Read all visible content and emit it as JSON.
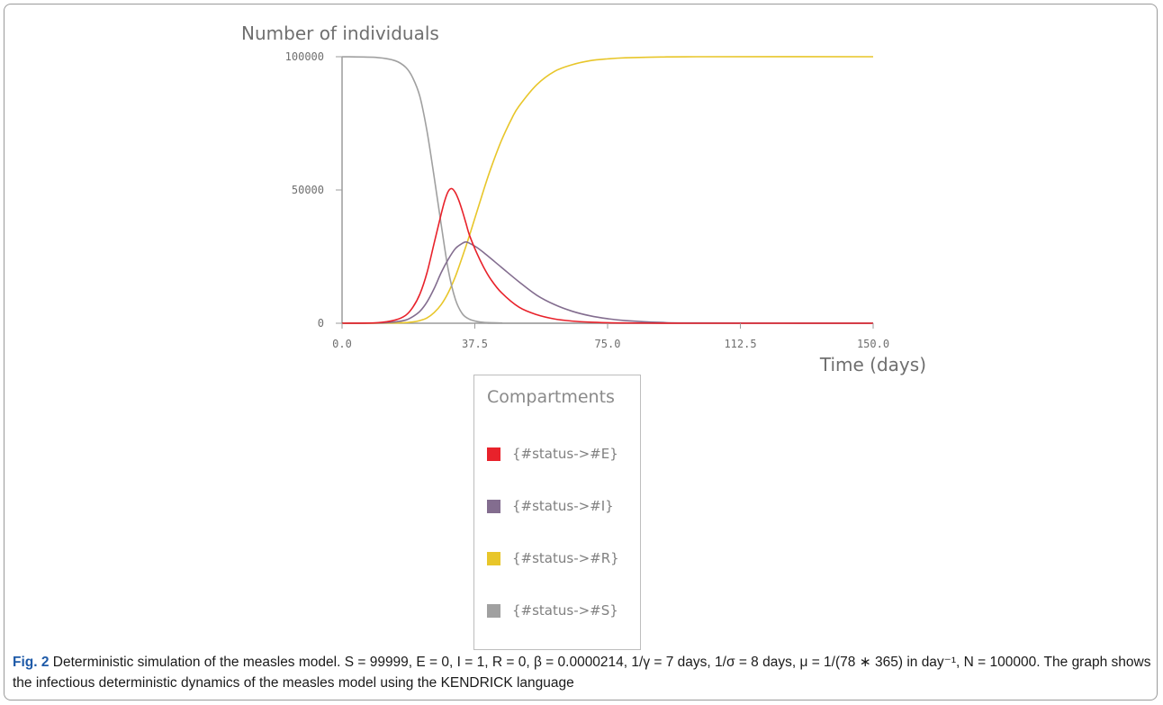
{
  "chart_data": {
    "type": "line",
    "ylabel": "Number of individuals",
    "xlabel": "Time (days)",
    "xlim": [
      0,
      150
    ],
    "ylim": [
      0,
      100000
    ],
    "x_ticks": [
      "0.0",
      "37.5",
      "75.0",
      "112.5",
      "150.0"
    ],
    "y_ticks": [
      "0",
      "50000",
      "100000"
    ],
    "legend_title": "Compartments",
    "legend_position": "below",
    "series": [
      {
        "name": "{#status->#E}",
        "color": "#e8222b",
        "x": [
          0,
          10,
          15,
          18,
          20,
          22,
          24,
          26,
          28,
          29,
          30,
          31,
          32,
          33,
          34,
          35,
          36,
          38,
          40,
          42,
          45,
          50,
          55,
          60,
          65,
          70,
          75,
          80,
          90,
          100,
          150
        ],
        "y": [
          0,
          200,
          1200,
          3000,
          6000,
          11000,
          19000,
          30000,
          41000,
          46000,
          49500,
          50500,
          49000,
          46000,
          42000,
          37500,
          33000,
          26500,
          21000,
          16500,
          11500,
          6000,
          3200,
          1600,
          800,
          400,
          200,
          100,
          20,
          0,
          0
        ]
      },
      {
        "name": "{#status->#I}",
        "color": "#836d8f",
        "x": [
          0,
          10,
          15,
          18,
          20,
          22,
          24,
          26,
          28,
          30,
          32,
          34,
          35,
          36,
          38,
          40,
          45,
          50,
          55,
          60,
          65,
          70,
          75,
          80,
          90,
          100,
          150
        ],
        "y": [
          0,
          100,
          500,
          1200,
          2500,
          4500,
          8000,
          13000,
          19000,
          24000,
          28000,
          30000,
          30500,
          30000,
          28500,
          26500,
          21000,
          15500,
          10500,
          7000,
          4500,
          2800,
          1700,
          1000,
          300,
          100,
          0
        ]
      },
      {
        "name": "{#status->#R}",
        "color": "#e8c62a",
        "x": [
          0,
          15,
          20,
          22,
          24,
          26,
          28,
          30,
          32,
          34,
          36,
          38,
          40,
          42,
          45,
          48,
          50,
          55,
          60,
          65,
          70,
          75,
          80,
          90,
          100,
          150
        ],
        "y": [
          0,
          100,
          500,
          1000,
          2000,
          4000,
          7000,
          11500,
          17500,
          25000,
          33000,
          41500,
          50000,
          58000,
          68500,
          77000,
          81500,
          89500,
          94500,
          97000,
          98500,
          99200,
          99600,
          99900,
          100000,
          100000
        ]
      },
      {
        "name": "{#status->#S}",
        "color": "#a0a0a0",
        "x": [
          0,
          10,
          15,
          18,
          20,
          22,
          24,
          26,
          28,
          30,
          32,
          34,
          36,
          38,
          40,
          45,
          50,
          150
        ],
        "y": [
          99999,
          99700,
          98500,
          96000,
          92000,
          85000,
          72000,
          55000,
          37000,
          20000,
          9000,
          3500,
          1500,
          700,
          300,
          100,
          0,
          0
        ]
      }
    ]
  },
  "caption": {
    "figno": "Fig. 2",
    "text": " Deterministic simulation of the measles model. S = 99999, E = 0, I = 1, R = 0, β = 0.0000214, 1/γ = 7 days, 1/σ = 8 days, μ = 1/(78 ∗ 365) in day⁻¹, N = 100000. The graph shows the infectious deterministic dynamics of the measles model using the KENDRICK language"
  }
}
